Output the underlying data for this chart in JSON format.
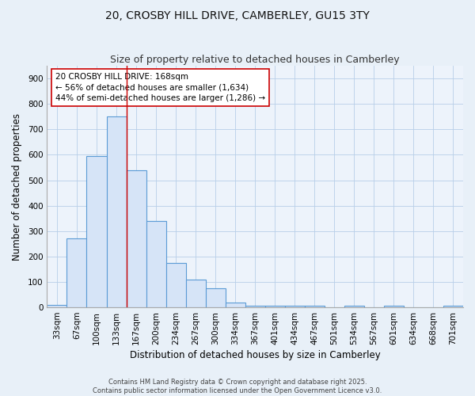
{
  "title": "20, CROSBY HILL DRIVE, CAMBERLEY, GU15 3TY",
  "subtitle": "Size of property relative to detached houses in Camberley",
  "xlabel": "Distribution of detached houses by size in Camberley",
  "ylabel": "Number of detached properties",
  "categories": [
    "33sqm",
    "67sqm",
    "100sqm",
    "133sqm",
    "167sqm",
    "200sqm",
    "234sqm",
    "267sqm",
    "300sqm",
    "334sqm",
    "367sqm",
    "401sqm",
    "434sqm",
    "467sqm",
    "501sqm",
    "534sqm",
    "567sqm",
    "601sqm",
    "634sqm",
    "668sqm",
    "701sqm"
  ],
  "values": [
    10,
    270,
    595,
    750,
    540,
    340,
    175,
    110,
    75,
    20,
    8,
    8,
    5,
    8,
    0,
    5,
    0,
    5,
    0,
    0,
    5
  ],
  "bar_color": "#d6e4f7",
  "bar_edge_color": "#5b9bd5",
  "vline_x": 3.5,
  "vline_color": "#cc0000",
  "annotation_text": "20 CROSBY HILL DRIVE: 168sqm\n← 56% of detached houses are smaller (1,634)\n44% of semi-detached houses are larger (1,286) →",
  "annotation_box_facecolor": "#ffffff",
  "annotation_box_edgecolor": "#cc0000",
  "ylim": [
    0,
    950
  ],
  "yticks": [
    0,
    100,
    200,
    300,
    400,
    500,
    600,
    700,
    800,
    900
  ],
  "footer1": "Contains HM Land Registry data © Crown copyright and database right 2025.",
  "footer2": "Contains public sector information licensed under the Open Government Licence v3.0.",
  "bg_color": "#e8f0f8",
  "plot_bg_color": "#edf3fb",
  "title_fontsize": 10,
  "subtitle_fontsize": 9,
  "xlabel_fontsize": 8.5,
  "ylabel_fontsize": 8.5,
  "tick_fontsize": 7.5,
  "annotation_fontsize": 7.5,
  "footer_fontsize": 6
}
